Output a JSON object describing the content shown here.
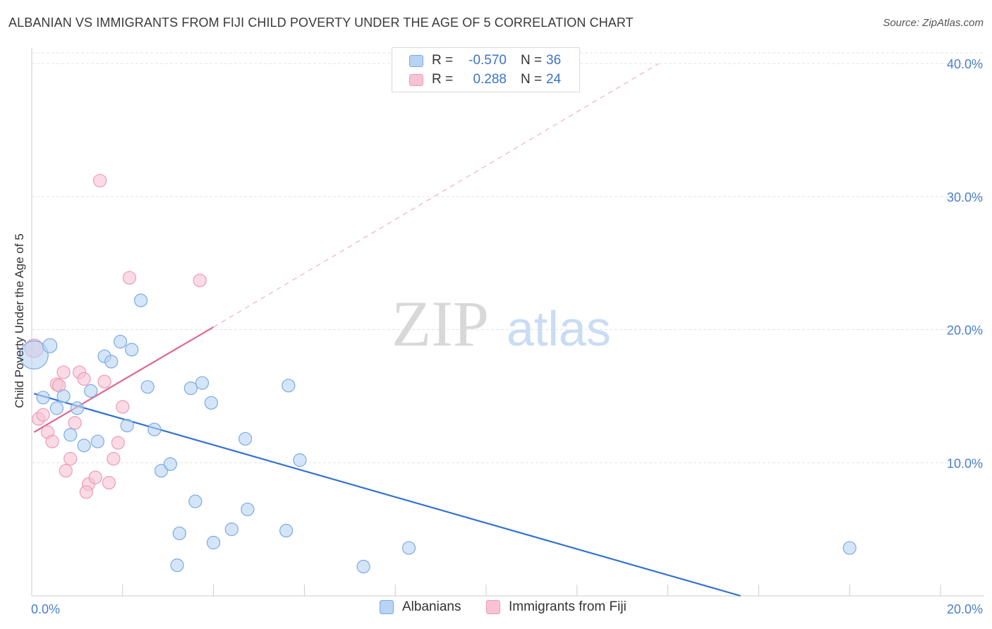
{
  "title": "ALBANIAN VS IMMIGRANTS FROM FIJI CHILD POVERTY UNDER THE AGE OF 5 CORRELATION CHART",
  "source": "Source: ZipAtlas.com",
  "watermark": {
    "zip": "ZIP",
    "atlas": "atlas"
  },
  "legend": {
    "rows": [
      {
        "r_label": "R =",
        "r_value": "-0.570",
        "n_label": "N =",
        "n_value": "36"
      },
      {
        "r_label": "R =",
        "r_value": "0.288",
        "n_label": "N =",
        "n_value": "24"
      }
    ]
  },
  "colors": {
    "blue_fill": "#b9d3f4",
    "blue_stroke": "#7aaae4",
    "blue_line": "#2f72d2",
    "pink_fill": "#f7c3d3",
    "pink_stroke": "#ee9ab5",
    "pink_line": "#e06890",
    "grid": "#e3e3e3",
    "tick_text": "#4a7fc8"
  },
  "chart_data": {
    "type": "scatter",
    "title": "ALBANIAN VS IMMIGRANTS FROM FIJI CHILD POVERTY UNDER THE AGE OF 5 CORRELATION CHART",
    "xlabel": "",
    "ylabel": "Child Poverty Under the Age of 5",
    "xlim": [
      0,
      20
    ],
    "ylim": [
      0,
      40.8
    ],
    "x_ticks_labeled": [
      "0.0%",
      "20.0%"
    ],
    "y_ticks": [
      10,
      20,
      30,
      40
    ],
    "y_tick_labels": [
      "10.0%",
      "20.0%",
      "30.0%",
      "40.0%"
    ],
    "grid": true,
    "legend_placement": "bottom",
    "series": [
      {
        "name": "Albanians",
        "points": [
          [
            0.05,
            18.1,
            20
          ],
          [
            0.4,
            18.8,
            10
          ],
          [
            0.25,
            14.9,
            9
          ],
          [
            0.55,
            14.1,
            9
          ],
          [
            0.7,
            15.0,
            9
          ],
          [
            0.85,
            12.1,
            9
          ],
          [
            1.0,
            14.1,
            9
          ],
          [
            1.15,
            11.3,
            9
          ],
          [
            1.3,
            15.4,
            9
          ],
          [
            1.45,
            11.6,
            9
          ],
          [
            1.6,
            18.0,
            9
          ],
          [
            1.75,
            17.6,
            9
          ],
          [
            1.95,
            19.1,
            9
          ],
          [
            2.1,
            12.8,
            9
          ],
          [
            2.2,
            18.5,
            9
          ],
          [
            2.4,
            22.2,
            9
          ],
          [
            2.55,
            15.7,
            9
          ],
          [
            2.7,
            12.5,
            9
          ],
          [
            2.85,
            9.4,
            9
          ],
          [
            3.05,
            9.9,
            9
          ],
          [
            3.25,
            4.7,
            9
          ],
          [
            3.2,
            2.3,
            9
          ],
          [
            3.5,
            15.6,
            9
          ],
          [
            3.6,
            7.1,
            9
          ],
          [
            3.75,
            16.0,
            9
          ],
          [
            3.95,
            14.5,
            9
          ],
          [
            4.0,
            4.0,
            9
          ],
          [
            4.4,
            5.0,
            9
          ],
          [
            4.75,
            6.5,
            9
          ],
          [
            4.7,
            11.8,
            9
          ],
          [
            5.6,
            4.9,
            9
          ],
          [
            5.65,
            15.8,
            9
          ],
          [
            5.9,
            10.2,
            9
          ],
          [
            7.3,
            2.2,
            9
          ],
          [
            8.3,
            3.6,
            9
          ],
          [
            18.0,
            3.6,
            9
          ]
        ],
        "trend": {
          "x": [
            0.05,
            15.6
          ],
          "y": [
            15.2,
            0.0
          ]
        }
      },
      {
        "name": "Immigrants from Fiji",
        "points": [
          [
            0.05,
            18.6,
            13
          ],
          [
            0.15,
            13.3,
            9
          ],
          [
            0.25,
            13.6,
            9
          ],
          [
            0.35,
            12.3,
            9
          ],
          [
            0.45,
            11.6,
            9
          ],
          [
            0.55,
            15.9,
            9
          ],
          [
            0.6,
            15.8,
            9
          ],
          [
            0.7,
            16.8,
            9
          ],
          [
            0.75,
            9.4,
            9
          ],
          [
            0.85,
            10.3,
            9
          ],
          [
            0.95,
            13.0,
            9
          ],
          [
            1.05,
            16.8,
            9
          ],
          [
            1.15,
            16.3,
            9
          ],
          [
            1.25,
            8.4,
            9
          ],
          [
            1.2,
            7.8,
            9
          ],
          [
            1.4,
            8.9,
            9
          ],
          [
            1.5,
            31.2,
            9
          ],
          [
            1.6,
            16.1,
            9
          ],
          [
            1.7,
            8.5,
            9
          ],
          [
            1.8,
            10.3,
            9
          ],
          [
            1.9,
            11.5,
            9
          ],
          [
            2.0,
            14.2,
            9
          ],
          [
            2.15,
            23.9,
            9
          ],
          [
            3.7,
            23.7,
            9
          ]
        ],
        "trend": {
          "x": [
            0.05,
            4.0
          ],
          "y": [
            12.3,
            20.2
          ]
        },
        "trend_extension": {
          "x": [
            4.0,
            13.8
          ],
          "y": [
            20.2,
            40.0
          ]
        }
      }
    ]
  }
}
